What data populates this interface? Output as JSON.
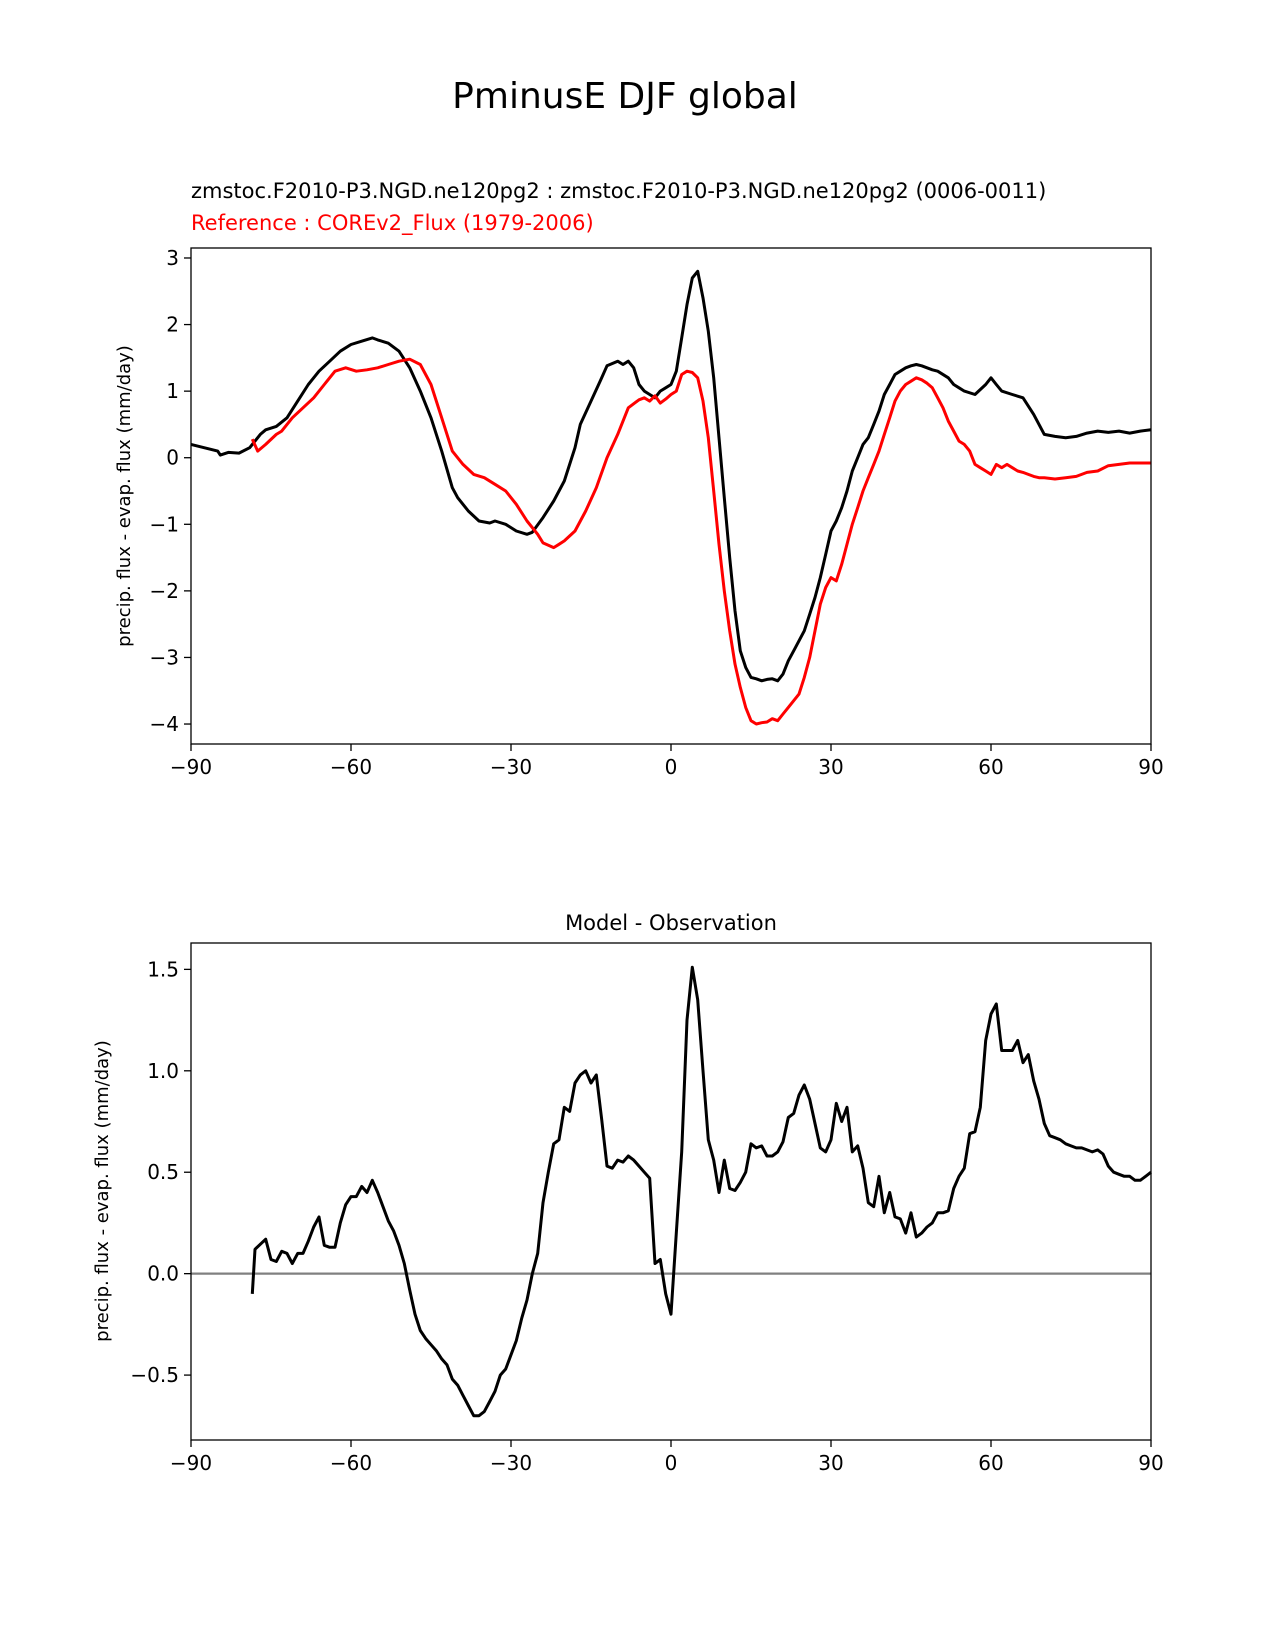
{
  "figure_title": "PminusE DJF global",
  "chart_data": [
    {
      "type": "line",
      "title_lines": [
        {
          "text": "zmstoc.F2010-P3.NGD.ne120pg2 : zmstoc.F2010-P3.NGD.ne120pg2 (0006-0011)",
          "color": "#000000"
        },
        {
          "text": "Reference : COREv2_Flux (1979-2006)",
          "color": "#ff0000"
        }
      ],
      "xlabel": "",
      "ylabel": "precip. flux - evap. flux (mm/day)",
      "xlim": [
        -90,
        90
      ],
      "ylim": [
        -4.3,
        3.15
      ],
      "xticks": [
        -90,
        -60,
        -30,
        0,
        30,
        60,
        90
      ],
      "xtick_labels": [
        "−90",
        "−60",
        "−30",
        "0",
        "30",
        "60",
        "90"
      ],
      "yticks": [
        -4,
        -3,
        -2,
        -1,
        0,
        1,
        2,
        3
      ],
      "ytick_labels": [
        "−4",
        "−3",
        "−2",
        "−1",
        "0",
        "1",
        "2",
        "3"
      ],
      "series": [
        {
          "name": "zmstoc.F2010-P3.NGD.ne120pg2",
          "color": "#000000",
          "x": [
            -90,
            -85,
            -84.5,
            -83,
            -81,
            -79,
            -77,
            -76,
            -74,
            -72,
            -70,
            -68,
            -66,
            -64,
            -62,
            -60,
            -58,
            -56,
            -55,
            -53,
            -51,
            -49,
            -47,
            -45,
            -43,
            -41,
            -40,
            -38,
            -36,
            -34,
            -33,
            -31,
            -29,
            -27,
            -26,
            -24,
            -22,
            -20,
            -18,
            -17,
            -15,
            -13,
            -12,
            -10,
            -9,
            -8,
            -7,
            -6,
            -5,
            -4,
            -3,
            -2,
            -1,
            0,
            1,
            2,
            3,
            4,
            5,
            6,
            7,
            8,
            9,
            10,
            11,
            12,
            13,
            14,
            15,
            16,
            17,
            18,
            19,
            20,
            21,
            22,
            23,
            24,
            25,
            26,
            27,
            28,
            29,
            30,
            31,
            32,
            33,
            34,
            35,
            36,
            37,
            38,
            39,
            40,
            41,
            42,
            43,
            44,
            45,
            46,
            47,
            48,
            49,
            50,
            52,
            53,
            54,
            55,
            57,
            59,
            60,
            61,
            62,
            64,
            66,
            68,
            70,
            72,
            74,
            76,
            78,
            80,
            82,
            84,
            86,
            88,
            90
          ],
          "y": [
            0.2,
            0.1,
            0.04,
            0.08,
            0.07,
            0.15,
            0.35,
            0.42,
            0.47,
            0.6,
            0.85,
            1.1,
            1.3,
            1.45,
            1.6,
            1.7,
            1.75,
            1.8,
            1.77,
            1.72,
            1.6,
            1.35,
            1.0,
            0.6,
            0.1,
            -0.45,
            -0.6,
            -0.8,
            -0.95,
            -0.98,
            -0.95,
            -1.0,
            -1.1,
            -1.15,
            -1.12,
            -0.9,
            -0.65,
            -0.35,
            0.15,
            0.5,
            0.85,
            1.2,
            1.38,
            1.45,
            1.4,
            1.45,
            1.35,
            1.1,
            1.0,
            0.95,
            0.9,
            1.0,
            1.05,
            1.1,
            1.3,
            1.8,
            2.3,
            2.7,
            2.8,
            2.4,
            1.9,
            1.2,
            0.3,
            -0.6,
            -1.5,
            -2.3,
            -2.9,
            -3.15,
            -3.3,
            -3.32,
            -3.35,
            -3.33,
            -3.32,
            -3.35,
            -3.25,
            -3.05,
            -2.9,
            -2.75,
            -2.6,
            -2.35,
            -2.1,
            -1.8,
            -1.45,
            -1.1,
            -0.95,
            -0.75,
            -0.5,
            -0.2,
            0.0,
            0.2,
            0.3,
            0.5,
            0.7,
            0.95,
            1.1,
            1.25,
            1.3,
            1.35,
            1.38,
            1.4,
            1.38,
            1.35,
            1.32,
            1.3,
            1.2,
            1.1,
            1.05,
            1.0,
            0.95,
            1.1,
            1.2,
            1.1,
            1.0,
            0.95,
            0.9,
            0.65,
            0.35,
            0.32,
            0.3,
            0.32,
            0.37,
            0.4,
            0.38,
            0.4,
            0.37,
            0.4,
            0.42
          ]
        },
        {
          "name": "COREv2_Flux",
          "color": "#ff0000",
          "x": [
            -78.5,
            -77.5,
            -76,
            -74,
            -73,
            -71,
            -69,
            -67,
            -65,
            -63,
            -61,
            -59,
            -57,
            -55,
            -53,
            -51,
            -49,
            -47,
            -45,
            -43,
            -41,
            -39,
            -37,
            -35,
            -33,
            -31,
            -29,
            -27,
            -25,
            -24,
            -22,
            -21,
            -20,
            -18,
            -16,
            -14,
            -12,
            -10,
            -8,
            -6,
            -5,
            -4,
            -3,
            -2,
            -1,
            0,
            1,
            2,
            3,
            4,
            5,
            6,
            7,
            8,
            9,
            10,
            11,
            12,
            13,
            14,
            15,
            16,
            17,
            18,
            19,
            20,
            21,
            22,
            23,
            24,
            25,
            26,
            27,
            28,
            29,
            30,
            31,
            32,
            33,
            34,
            35,
            36,
            37,
            38,
            39,
            40,
            41,
            42,
            43,
            44,
            45,
            46,
            47,
            48,
            49,
            50,
            51,
            52,
            53,
            54,
            55,
            56,
            57,
            58,
            59,
            60,
            61,
            62,
            63,
            64,
            65,
            66,
            67,
            68,
            69,
            70,
            72,
            74,
            76,
            78,
            80,
            82,
            84,
            86,
            90
          ],
          "y": [
            0.28,
            0.1,
            0.2,
            0.35,
            0.4,
            0.6,
            0.75,
            0.9,
            1.1,
            1.3,
            1.35,
            1.3,
            1.32,
            1.35,
            1.4,
            1.45,
            1.48,
            1.4,
            1.1,
            0.6,
            0.1,
            -0.1,
            -0.25,
            -0.3,
            -0.4,
            -0.5,
            -0.7,
            -0.95,
            -1.15,
            -1.28,
            -1.35,
            -1.3,
            -1.25,
            -1.1,
            -0.8,
            -0.45,
            0.0,
            0.35,
            0.75,
            0.87,
            0.9,
            0.85,
            0.93,
            0.82,
            0.88,
            0.95,
            1.0,
            1.25,
            1.3,
            1.28,
            1.2,
            0.85,
            0.3,
            -0.5,
            -1.3,
            -2.0,
            -2.6,
            -3.1,
            -3.45,
            -3.75,
            -3.95,
            -4.0,
            -3.98,
            -3.97,
            -3.92,
            -3.95,
            -3.85,
            -3.75,
            -3.65,
            -3.55,
            -3.3,
            -3.0,
            -2.6,
            -2.2,
            -1.95,
            -1.8,
            -1.85,
            -1.6,
            -1.3,
            -1.0,
            -0.75,
            -0.5,
            -0.3,
            -0.1,
            0.1,
            0.35,
            0.6,
            0.85,
            1.0,
            1.1,
            1.15,
            1.2,
            1.17,
            1.12,
            1.05,
            0.9,
            0.75,
            0.55,
            0.4,
            0.25,
            0.2,
            0.1,
            -0.1,
            -0.15,
            -0.2,
            -0.25,
            -0.1,
            -0.15,
            -0.1,
            -0.15,
            -0.2,
            -0.22,
            -0.25,
            -0.28,
            -0.3,
            -0.3,
            -0.32,
            -0.3,
            -0.28,
            -0.22,
            -0.2,
            -0.12,
            -0.1,
            -0.08,
            -0.08
          ]
        }
      ]
    },
    {
      "type": "line",
      "title": "Model - Observation",
      "xlabel": "",
      "ylabel": "precip. flux - evap. flux (mm/day)",
      "xlim": [
        -90,
        90
      ],
      "ylim": [
        -0.82,
        1.63
      ],
      "xticks": [
        -90,
        -60,
        -30,
        0,
        30,
        60,
        90
      ],
      "xtick_labels": [
        "−90",
        "−60",
        "−30",
        "0",
        "30",
        "60",
        "90"
      ],
      "yticks": [
        -0.5,
        0.0,
        0.5,
        1.0,
        1.5
      ],
      "ytick_labels": [
        "−0.5",
        "0.0",
        "0.5",
        "1.0",
        "1.5"
      ],
      "zero_line": {
        "y": 0.0,
        "color": "#808080"
      },
      "series": [
        {
          "name": "Model - Observation",
          "color": "#000000",
          "x": [
            -78.5,
            -78,
            -76,
            -75,
            -74,
            -73,
            -72,
            -71,
            -70,
            -69,
            -68,
            -67,
            -66,
            -65,
            -64,
            -63,
            -62,
            -61,
            -60,
            -59,
            -58,
            -57,
            -56,
            -55,
            -54,
            -53,
            -52,
            -51,
            -50,
            -49,
            -48,
            -47,
            -46,
            -45,
            -44,
            -43,
            -42,
            -41,
            -40,
            -39,
            -38,
            -37,
            -36,
            -35,
            -34,
            -33,
            -32,
            -31,
            -30,
            -29,
            -28,
            -27,
            -26,
            -25,
            -24,
            -23,
            -22,
            -21,
            -20,
            -19,
            -18,
            -17,
            -16,
            -15,
            -14,
            -13,
            -12,
            -11,
            -10,
            -9,
            -8,
            -7,
            -6,
            -5,
            -4,
            -3,
            -2,
            -1,
            0,
            1,
            2,
            3,
            4,
            5,
            6,
            7,
            8,
            9,
            10,
            11,
            12,
            13,
            14,
            15,
            16,
            17,
            18,
            19,
            20,
            21,
            22,
            23,
            24,
            25,
            26,
            27,
            28,
            29,
            30,
            31,
            32,
            33,
            34,
            35,
            36,
            37,
            38,
            39,
            40,
            41,
            42,
            43,
            44,
            45,
            46,
            47,
            48,
            49,
            50,
            51,
            52,
            53,
            54,
            55,
            56,
            57,
            58,
            59,
            60,
            61,
            62,
            63,
            64,
            65,
            66,
            67,
            68,
            69,
            70,
            71,
            72,
            73,
            74,
            75,
            76,
            77,
            78,
            79,
            80,
            81,
            82,
            83,
            84,
            85,
            86,
            87,
            88,
            89,
            90
          ],
          "y": [
            -0.1,
            0.12,
            0.17,
            0.07,
            0.06,
            0.11,
            0.1,
            0.05,
            0.1,
            0.1,
            0.16,
            0.23,
            0.28,
            0.14,
            0.13,
            0.13,
            0.25,
            0.34,
            0.38,
            0.38,
            0.43,
            0.4,
            0.46,
            0.4,
            0.33,
            0.26,
            0.21,
            0.14,
            0.05,
            -0.08,
            -0.2,
            -0.28,
            -0.32,
            -0.35,
            -0.38,
            -0.42,
            -0.45,
            -0.52,
            -0.55,
            -0.6,
            -0.65,
            -0.7,
            -0.7,
            -0.68,
            -0.63,
            -0.58,
            -0.5,
            -0.47,
            -0.4,
            -0.33,
            -0.22,
            -0.13,
            0.0,
            0.1,
            0.35,
            0.5,
            0.64,
            0.66,
            0.82,
            0.8,
            0.94,
            0.98,
            1.0,
            0.94,
            0.98,
            0.76,
            0.53,
            0.52,
            0.56,
            0.55,
            0.58,
            0.56,
            0.53,
            0.5,
            0.47,
            0.05,
            0.07,
            -0.1,
            -0.2,
            0.2,
            0.6,
            1.25,
            1.51,
            1.35,
            1.0,
            0.66,
            0.56,
            0.4,
            0.56,
            0.42,
            0.41,
            0.45,
            0.5,
            0.64,
            0.62,
            0.63,
            0.58,
            0.58,
            0.6,
            0.65,
            0.77,
            0.79,
            0.88,
            0.93,
            0.86,
            0.74,
            0.62,
            0.6,
            0.66,
            0.84,
            0.75,
            0.82,
            0.6,
            0.63,
            0.52,
            0.35,
            0.33,
            0.48,
            0.3,
            0.4,
            0.28,
            0.27,
            0.2,
            0.3,
            0.18,
            0.2,
            0.23,
            0.25,
            0.3,
            0.3,
            0.31,
            0.42,
            0.48,
            0.52,
            0.69,
            0.7,
            0.82,
            1.15,
            1.28,
            1.33,
            1.1,
            1.1,
            1.1,
            1.15,
            1.04,
            1.08,
            0.95,
            0.86,
            0.74,
            0.68,
            0.67,
            0.66,
            0.64,
            0.63,
            0.62,
            0.62,
            0.61,
            0.6,
            0.61,
            0.59,
            0.53,
            0.5,
            0.49,
            0.48,
            0.48,
            0.46,
            0.46,
            0.48,
            0.5
          ]
        }
      ]
    }
  ]
}
